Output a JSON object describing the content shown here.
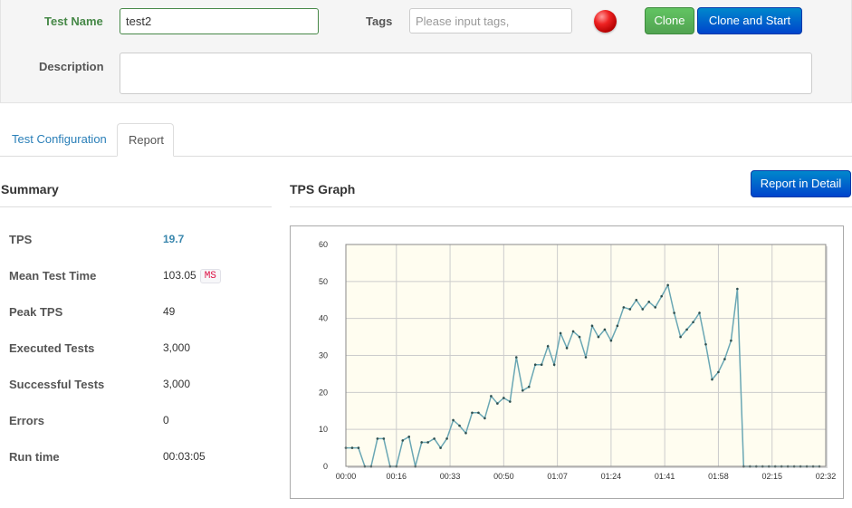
{
  "header": {
    "test_name_label": "Test Name",
    "test_name_value": "test2",
    "tags_label": "Tags",
    "tags_placeholder": "Please input tags,",
    "description_label": "Description",
    "description_value": "",
    "clone_label": "Clone",
    "clone_start_label": "Clone and Start",
    "status_color": "#ee2222"
  },
  "tabs": [
    {
      "label": "Test Configuration",
      "active": false
    },
    {
      "label": "Report",
      "active": true
    }
  ],
  "summary": {
    "title": "Summary",
    "rows": [
      {
        "label": "TPS",
        "value": "19.7"
      },
      {
        "label": "Mean Test Time",
        "value": "103.05",
        "unit": "MS"
      },
      {
        "label": "Peak TPS",
        "value": "49"
      },
      {
        "label": "Executed Tests",
        "value": "3,000"
      },
      {
        "label": "Successful Tests",
        "value": "3,000"
      },
      {
        "label": "Errors",
        "value": "0"
      },
      {
        "label": "Run time",
        "value": "00:03:05"
      }
    ]
  },
  "graph": {
    "title": "TPS Graph",
    "report_detail_label": "Report in Detail"
  },
  "chart_data": {
    "type": "line",
    "title": "",
    "xlabel": "",
    "ylabel": "",
    "x_unit": "seconds",
    "xlim": [
      0,
      152
    ],
    "ylim": [
      0,
      60
    ],
    "x_ticks": [
      0,
      16,
      33,
      50,
      67,
      84,
      101,
      118,
      135,
      152
    ],
    "x_tick_labels": [
      "00:00",
      "00:16",
      "00:33",
      "00:50",
      "01:07",
      "01:24",
      "01:41",
      "01:58",
      "02:15",
      "02:32"
    ],
    "y_ticks": [
      0,
      10,
      20,
      30,
      40,
      50,
      60
    ],
    "y_tick_labels": [
      "0",
      "10",
      "20",
      "30",
      "40",
      "50",
      "60"
    ],
    "grid": true,
    "background_color": "#fffdf0",
    "line_color": "#6aa7b4",
    "marker_color": "#2f4f4f",
    "series": [
      {
        "x": [
          0,
          2,
          4,
          6,
          8,
          10,
          12,
          14,
          16,
          18,
          20,
          22,
          24,
          26,
          28,
          30,
          32,
          34,
          36,
          38,
          40,
          42,
          44,
          46,
          48,
          50,
          52,
          54,
          56,
          58,
          60,
          62,
          64,
          66,
          68,
          70,
          72,
          74,
          76,
          78,
          80,
          82,
          84,
          86,
          88,
          90,
          92,
          94,
          96,
          98,
          100,
          102,
          104,
          106,
          108,
          110,
          112,
          114,
          116,
          118,
          120,
          122,
          124,
          126,
          128,
          130,
          132,
          134,
          136,
          138,
          140,
          142,
          144,
          146,
          148,
          150
        ],
        "y": [
          5,
          5,
          5,
          0,
          0,
          7.5,
          7.5,
          0,
          0,
          7,
          8,
          0,
          6.5,
          6.5,
          7.5,
          5,
          7.5,
          12.5,
          11,
          9,
          14.5,
          14.5,
          13,
          19,
          17,
          18.5,
          17.5,
          29.5,
          20.5,
          21.5,
          27.5,
          27.5,
          32.5,
          27.5,
          36,
          32,
          36.5,
          35,
          29.5,
          38,
          35,
          37,
          34,
          38,
          43,
          42.5,
          45,
          42.5,
          44.5,
          43,
          46,
          49,
          41.5,
          35,
          37,
          39,
          41.5,
          33,
          23.5,
          25.5,
          29,
          34,
          48,
          0,
          0,
          0,
          0,
          0,
          0,
          0,
          0,
          0,
          0,
          0,
          0,
          0
        ]
      }
    ]
  }
}
